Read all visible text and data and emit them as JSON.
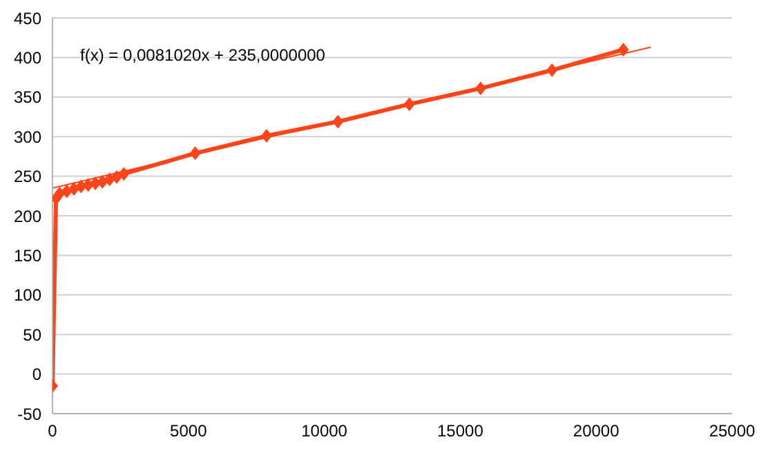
{
  "chart_data": {
    "type": "line",
    "annotations": [
      "f(x) = 0,0081020x + 235,0000000"
    ],
    "series": [
      {
        "color": "#ff4419",
        "marker": "diamond",
        "x": [
          0,
          131,
          262.5,
          525,
          787.5,
          1050,
          1312.5,
          1575,
          1837.5,
          2100,
          2362.5,
          2625,
          5250,
          7875,
          10500,
          13125,
          15750,
          18375,
          21000
        ],
        "values": [
          -15,
          222,
          228,
          231,
          234,
          237,
          239,
          241,
          243,
          246,
          249,
          253,
          279,
          301,
          319,
          341,
          361,
          384,
          410
        ]
      },
      {
        "color": "#ff4419",
        "marker": "none",
        "x": [
          0,
          22000
        ],
        "values": [
          235,
          413
        ]
      }
    ],
    "xlim": [
      0,
      25000
    ],
    "xticks": [
      0,
      5000,
      10000,
      15000,
      20000,
      25000
    ],
    "ylim": [
      -50,
      450
    ],
    "yticks": [
      -50,
      0,
      50,
      100,
      150,
      200,
      250,
      300,
      350,
      400,
      450
    ],
    "grid": "y"
  }
}
